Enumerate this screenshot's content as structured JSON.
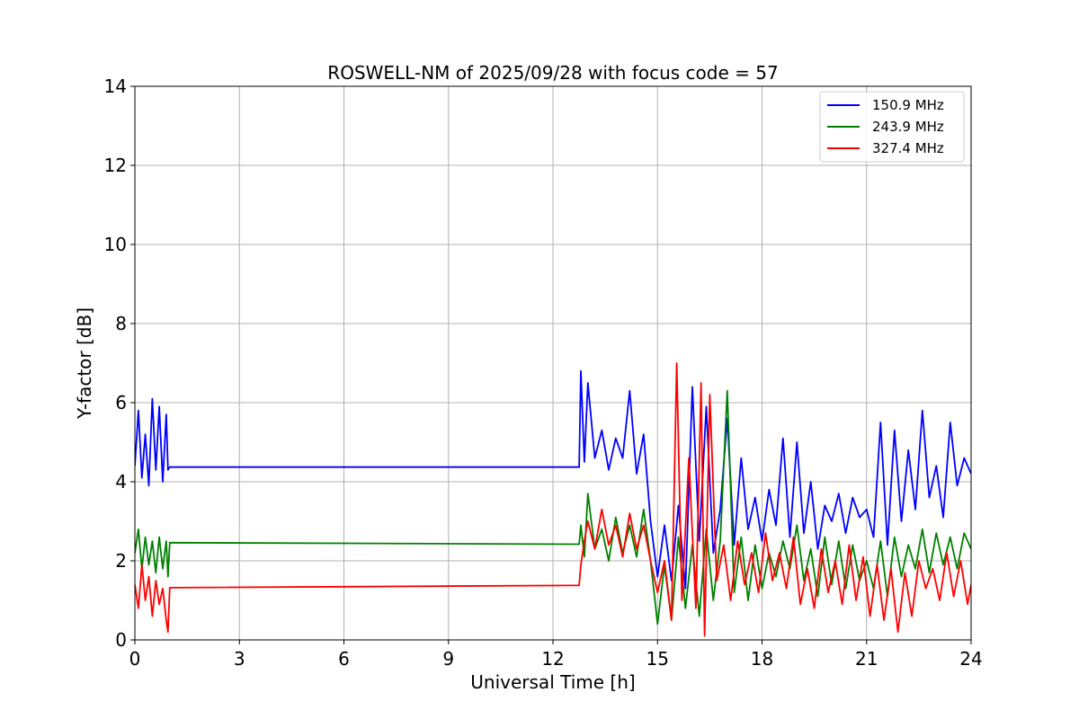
{
  "chart_data": {
    "type": "line",
    "title": "ROSWELL-NM of 2025/09/28 with focus code = 57",
    "xlabel": "Universal Time [h]",
    "ylabel": "Y-factor [dB]",
    "xlim": [
      0,
      24
    ],
    "ylim": [
      0,
      14
    ],
    "xticks": [
      0,
      3,
      6,
      9,
      12,
      15,
      18,
      21,
      24
    ],
    "yticks": [
      0,
      2,
      4,
      6,
      8,
      10,
      12,
      14
    ],
    "grid": true,
    "legend_position": "top-right",
    "series": [
      {
        "name": "150.9 MHz",
        "color": "#0000ff",
        "x": [
          0.0,
          0.1,
          0.2,
          0.3,
          0.4,
          0.5,
          0.6,
          0.7,
          0.8,
          0.9,
          0.95,
          1.0,
          12.75,
          12.8,
          12.9,
          13.0,
          13.2,
          13.4,
          13.6,
          13.8,
          14.0,
          14.2,
          14.4,
          14.6,
          14.8,
          15.0,
          15.2,
          15.4,
          15.6,
          15.8,
          16.0,
          16.2,
          16.4,
          16.6,
          16.8,
          17.0,
          17.2,
          17.4,
          17.6,
          17.8,
          18.0,
          18.2,
          18.4,
          18.6,
          18.8,
          19.0,
          19.2,
          19.4,
          19.6,
          19.8,
          20.0,
          20.2,
          20.4,
          20.6,
          20.8,
          21.0,
          21.2,
          21.4,
          21.6,
          21.8,
          22.0,
          22.2,
          22.4,
          22.6,
          22.8,
          23.0,
          23.2,
          23.4,
          23.6,
          23.8,
          24.0
        ],
        "y": [
          4.4,
          5.8,
          4.1,
          5.2,
          3.9,
          6.1,
          4.3,
          5.9,
          4.0,
          5.7,
          4.3,
          4.37,
          4.37,
          6.8,
          4.5,
          6.5,
          4.6,
          5.3,
          4.3,
          5.1,
          4.6,
          6.3,
          4.2,
          5.2,
          3.0,
          1.6,
          2.9,
          1.5,
          3.4,
          1.3,
          6.4,
          2.5,
          5.9,
          2.2,
          3.3,
          5.6,
          2.4,
          4.6,
          2.8,
          3.6,
          2.5,
          3.8,
          2.9,
          5.1,
          2.6,
          5.0,
          2.7,
          4.0,
          2.3,
          3.4,
          3.0,
          3.7,
          2.7,
          3.6,
          3.1,
          3.3,
          2.6,
          5.5,
          2.4,
          5.3,
          3.0,
          4.8,
          3.3,
          5.8,
          3.6,
          4.4,
          3.1,
          5.5,
          3.9,
          4.6,
          4.2
        ]
      },
      {
        "name": "243.9 MHz",
        "color": "#008000",
        "x": [
          0.0,
          0.1,
          0.2,
          0.3,
          0.4,
          0.5,
          0.6,
          0.7,
          0.8,
          0.9,
          0.95,
          1.0,
          12.75,
          12.8,
          12.9,
          13.0,
          13.2,
          13.4,
          13.6,
          13.8,
          14.0,
          14.2,
          14.4,
          14.6,
          14.8,
          15.0,
          15.2,
          15.4,
          15.6,
          15.8,
          16.0,
          16.2,
          16.4,
          16.6,
          16.8,
          17.0,
          17.2,
          17.4,
          17.6,
          17.8,
          18.0,
          18.2,
          18.4,
          18.6,
          18.8,
          19.0,
          19.2,
          19.4,
          19.6,
          19.8,
          20.0,
          20.2,
          20.4,
          20.6,
          20.8,
          21.0,
          21.2,
          21.4,
          21.6,
          21.8,
          22.0,
          22.2,
          22.4,
          22.6,
          22.8,
          23.0,
          23.2,
          23.4,
          23.6,
          23.8,
          24.0
        ],
        "y": [
          2.2,
          2.8,
          1.8,
          2.6,
          1.9,
          2.5,
          1.7,
          2.6,
          1.8,
          2.5,
          1.6,
          2.46,
          2.42,
          2.9,
          2.1,
          3.7,
          2.3,
          2.8,
          2.0,
          3.1,
          2.2,
          2.9,
          2.1,
          3.3,
          2.0,
          0.4,
          1.9,
          0.5,
          2.6,
          0.8,
          2.4,
          0.6,
          2.8,
          1.0,
          2.5,
          6.3,
          1.2,
          2.6,
          1.0,
          2.4,
          1.3,
          2.2,
          1.6,
          2.5,
          1.8,
          2.9,
          1.5,
          2.3,
          1.1,
          2.6,
          1.4,
          2.5,
          1.3,
          2.4,
          1.5,
          2.0,
          1.3,
          2.5,
          1.1,
          2.6,
          1.6,
          2.4,
          1.8,
          2.8,
          1.7,
          2.7,
          1.9,
          2.6,
          1.8,
          2.7,
          2.3
        ]
      },
      {
        "name": "327.4 MHz",
        "color": "#ff0000",
        "x": [
          0.0,
          0.1,
          0.2,
          0.3,
          0.4,
          0.5,
          0.6,
          0.7,
          0.8,
          0.9,
          0.95,
          1.0,
          12.75,
          12.8,
          12.9,
          13.0,
          13.2,
          13.4,
          13.6,
          13.8,
          14.0,
          14.2,
          14.4,
          14.6,
          14.8,
          15.0,
          15.2,
          15.4,
          15.55,
          15.7,
          15.9,
          16.1,
          16.25,
          16.35,
          16.5,
          16.7,
          16.9,
          17.1,
          17.3,
          17.5,
          17.7,
          17.9,
          18.1,
          18.3,
          18.5,
          18.7,
          18.9,
          19.1,
          19.3,
          19.5,
          19.7,
          19.9,
          20.1,
          20.3,
          20.5,
          20.7,
          20.9,
          21.1,
          21.3,
          21.5,
          21.7,
          21.9,
          22.1,
          22.3,
          22.5,
          22.7,
          22.9,
          23.1,
          23.3,
          23.5,
          23.7,
          23.9,
          24.0
        ],
        "y": [
          1.4,
          0.8,
          1.9,
          1.0,
          1.6,
          0.6,
          1.5,
          0.9,
          1.3,
          0.5,
          0.2,
          1.32,
          1.38,
          1.9,
          2.5,
          3.0,
          2.3,
          3.3,
          2.4,
          2.9,
          2.1,
          3.2,
          2.3,
          2.9,
          2.0,
          1.2,
          2.0,
          0.5,
          7.0,
          1.0,
          4.6,
          0.8,
          6.5,
          0.1,
          6.2,
          1.5,
          2.4,
          1.0,
          2.5,
          1.4,
          2.2,
          1.2,
          2.7,
          1.5,
          2.2,
          1.3,
          2.6,
          0.9,
          1.8,
          0.8,
          2.3,
          1.2,
          2.0,
          0.9,
          2.4,
          1.0,
          2.1,
          0.6,
          1.9,
          0.5,
          1.8,
          0.2,
          1.7,
          0.6,
          2.0,
          1.3,
          1.8,
          1.0,
          2.2,
          1.1,
          2.0,
          0.9,
          1.4
        ]
      }
    ]
  }
}
